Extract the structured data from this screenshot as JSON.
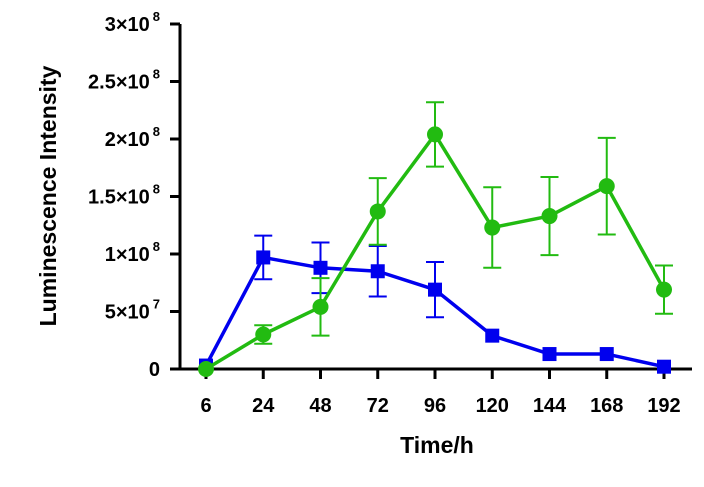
{
  "chart_data": {
    "type": "line",
    "title": "",
    "xlabel": "Time/h",
    "ylabel": "Luminescence Intensity",
    "x": [
      6,
      24,
      48,
      72,
      96,
      120,
      144,
      168,
      192
    ],
    "x_tick_labels": [
      "6",
      "24",
      "48",
      "72",
      "96",
      "120",
      "144",
      "168",
      "192"
    ],
    "ylim": [
      0,
      300000000
    ],
    "y_ticks": [
      {
        "value": 0,
        "mantissa": "0",
        "exponent": ""
      },
      {
        "value": 50000000,
        "mantissa": "5×10",
        "exponent": "7"
      },
      {
        "value": 100000000,
        "mantissa": "1×10",
        "exponent": "8"
      },
      {
        "value": 150000000,
        "mantissa": "1.5×10",
        "exponent": "8"
      },
      {
        "value": 200000000,
        "mantissa": "2×10",
        "exponent": "8"
      },
      {
        "value": 250000000,
        "mantissa": "2.5×10",
        "exponent": "8"
      },
      {
        "value": 300000000,
        "mantissa": "3×10",
        "exponent": "8"
      }
    ],
    "series": [
      {
        "name": "blue",
        "color": "#0000ee",
        "marker": "square",
        "values": [
          3000000,
          97000000,
          88000000,
          85000000,
          69000000,
          29000000,
          13000000,
          13000000,
          2000000
        ],
        "errors": [
          0,
          19000000,
          22000000,
          22000000,
          24000000,
          0,
          0,
          0,
          0
        ]
      },
      {
        "name": "green",
        "color": "#22bb11",
        "marker": "circle",
        "values": [
          0,
          30000000,
          54000000,
          137000000,
          204000000,
          123000000,
          133000000,
          159000000,
          69000000
        ],
        "errors": [
          0,
          8000000,
          25000000,
          29000000,
          28000000,
          35000000,
          34000000,
          42000000,
          21000000
        ]
      }
    ]
  }
}
